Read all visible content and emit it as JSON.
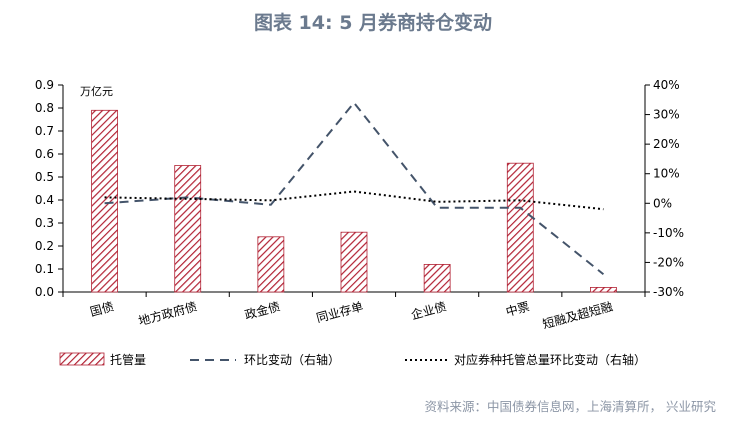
{
  "title": "图表 14: 5 月券商持仓变动",
  "source": "资料来源：中国债券信息网，上海清算所， 兴业研究",
  "chart_data": {
    "type": "bar",
    "categories": [
      "国债",
      "地方政府债",
      "政金债",
      "同业存单",
      "企业债",
      "中票",
      "短融及超短融"
    ],
    "y_unit_label": "万亿元",
    "y_left_ticks": [
      "0.0",
      "0.1",
      "0.2",
      "0.3",
      "0.4",
      "0.5",
      "0.6",
      "0.7",
      "0.8",
      "0.9"
    ],
    "y_right_ticks": [
      "-30%",
      "-20%",
      "-10%",
      "0%",
      "10%",
      "20%",
      "30%",
      "40%"
    ],
    "ylim_left": [
      0,
      0.9
    ],
    "ylim_right": [
      -30,
      40
    ],
    "series": [
      {
        "name": "托管量",
        "type": "bar",
        "axis": "left",
        "values": [
          0.79,
          0.55,
          0.24,
          0.26,
          0.12,
          0.56,
          0.02
        ]
      },
      {
        "name": "环比变动（右轴）",
        "type": "line",
        "style": "dashed",
        "axis": "right",
        "values": [
          0.0,
          2.0,
          -0.5,
          34.0,
          -1.5,
          -1.5,
          -24.0
        ]
      },
      {
        "name": "对应券种托管总量环比变动（右轴）",
        "type": "line",
        "style": "dotted",
        "axis": "right",
        "values": [
          2.0,
          1.5,
          1.0,
          4.0,
          0.5,
          1.0,
          -2.0
        ]
      }
    ],
    "colors": {
      "bar": "#b22234",
      "dashed": "#44546a",
      "dotted": "#000000"
    },
    "legend_position": "bottom"
  }
}
